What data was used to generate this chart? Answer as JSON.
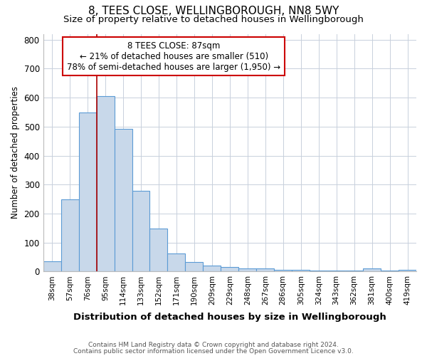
{
  "title": "8, TEES CLOSE, WELLINGBOROUGH, NN8 5WY",
  "subtitle": "Size of property relative to detached houses in Wellingborough",
  "xlabel": "Distribution of detached houses by size in Wellingborough",
  "ylabel": "Number of detached properties",
  "categories": [
    "38sqm",
    "57sqm",
    "76sqm",
    "95sqm",
    "114sqm",
    "133sqm",
    "152sqm",
    "171sqm",
    "190sqm",
    "209sqm",
    "229sqm",
    "248sqm",
    "267sqm",
    "286sqm",
    "305sqm",
    "324sqm",
    "343sqm",
    "362sqm",
    "381sqm",
    "400sqm",
    "419sqm"
  ],
  "values": [
    35,
    248,
    548,
    604,
    493,
    278,
    148,
    62,
    34,
    20,
    15,
    12,
    10,
    5,
    5,
    4,
    4,
    3,
    10,
    3,
    5
  ],
  "bar_color": "#c8d8ea",
  "bar_edge_color": "#5b9bd5",
  "grid_color": "#c8d0dc",
  "vline_color": "#aa0000",
  "annotation_line1": "8 TEES CLOSE: 87sqm",
  "annotation_line2": "← 21% of detached houses are smaller (510)",
  "annotation_line3": "78% of semi-detached houses are larger (1,950) →",
  "annotation_box_color": "#cc0000",
  "ylim": [
    0,
    820
  ],
  "yticks": [
    0,
    100,
    200,
    300,
    400,
    500,
    600,
    700,
    800
  ],
  "footer1": "Contains HM Land Registry data © Crown copyright and database right 2024.",
  "footer2": "Contains public sector information licensed under the Open Government Licence v3.0.",
  "bg_color": "#ffffff",
  "plot_bg_color": "#ffffff",
  "title_fontsize": 11,
  "subtitle_fontsize": 9.5
}
